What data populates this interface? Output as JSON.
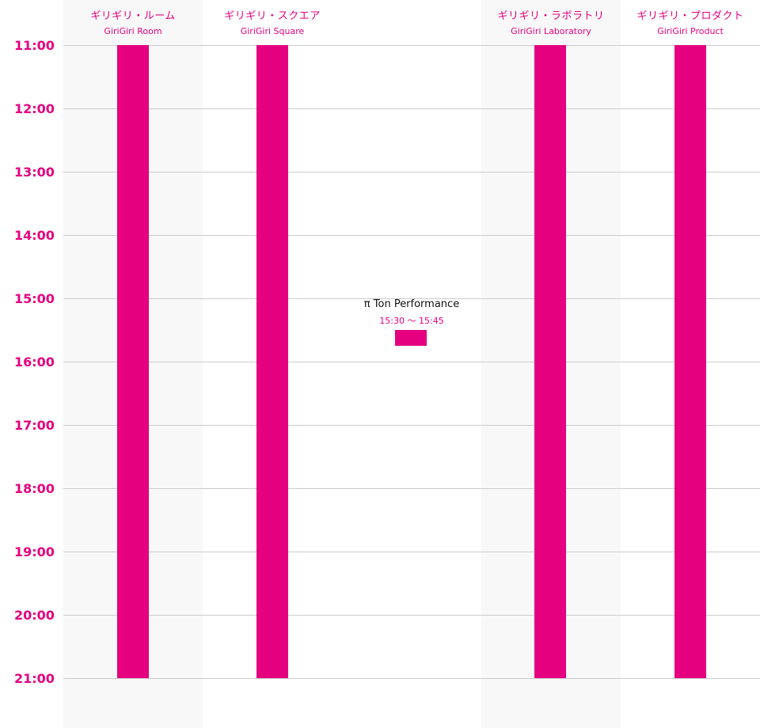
{
  "venues": [
    {
      "jp": "ギリギリ・ルーム",
      "en": "GiriGiri Room",
      "shaded": true,
      "bar_start": "11:00",
      "bar_end": "21:00"
    },
    {
      "jp": "ギリギリ・スクエア",
      "en": "GiriGiri Square",
      "shaded": false,
      "bar_start": "11:00",
      "bar_end": "21:00"
    },
    {
      "jp": "",
      "en": "",
      "shaded": false
    },
    {
      "jp": "ギリギリ・ラボラトリ",
      "en": "GiriGiri Laboratory",
      "shaded": true,
      "bar_start": "11:00",
      "bar_end": "21:00"
    },
    {
      "jp": "ギリギリ・プロダクト",
      "en": "GiriGiri Product",
      "shaded": false,
      "bar_start": "11:00",
      "bar_end": "21:00"
    }
  ],
  "hours": [
    "11:00",
    "12:00",
    "13:00",
    "14:00",
    "15:00",
    "16:00",
    "17:00",
    "18:00",
    "19:00",
    "20:00",
    "21:00"
  ],
  "event": {
    "title": "π Ton Performance",
    "time": "15:30 〜 15:45",
    "start": "15:30",
    "end": "15:45"
  },
  "colors": {
    "accent": "#e4007f",
    "grid": "#cccccc",
    "shade": "#f8f8f8"
  }
}
